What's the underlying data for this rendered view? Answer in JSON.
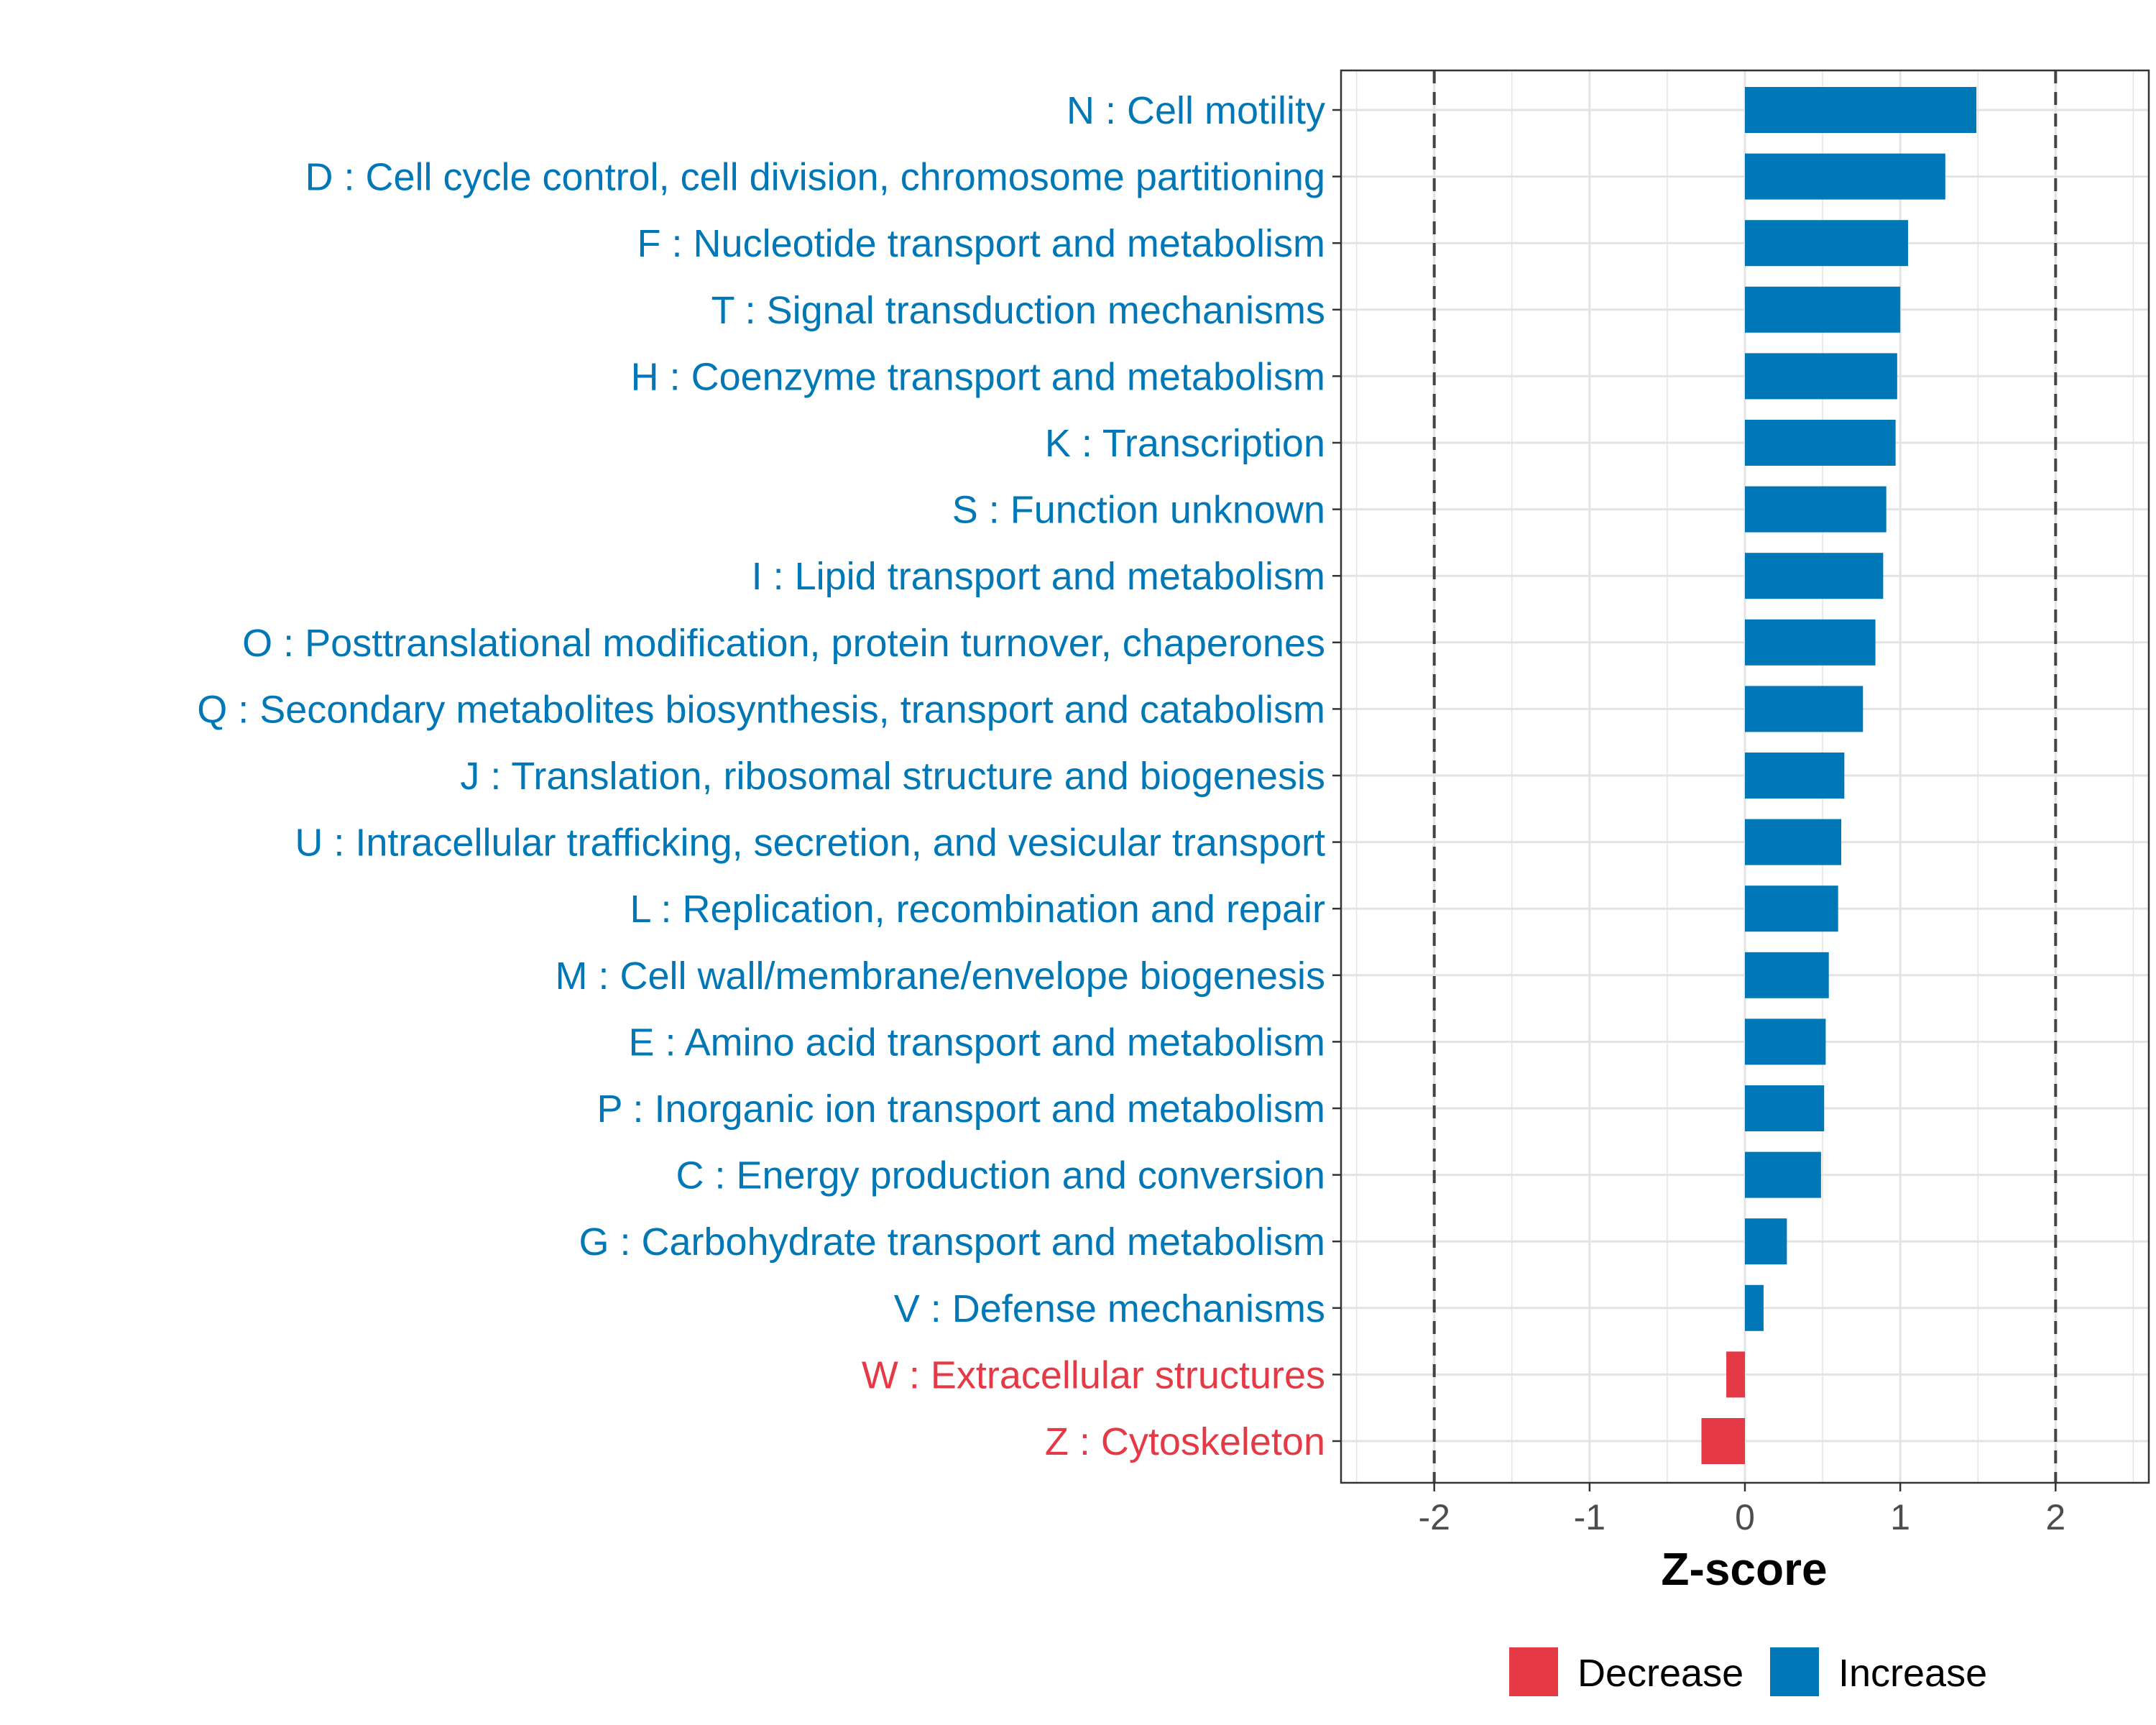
{
  "chart_data": {
    "type": "bar",
    "orientation": "horizontal",
    "xlabel": "Z-score",
    "ylabel": "",
    "xlim": [
      -2.6,
      2.6
    ],
    "xticks": [
      -2,
      -1,
      0,
      1,
      2
    ],
    "xtick_labels": [
      "-2",
      "-1",
      "0",
      "1",
      "2"
    ],
    "reference_lines": [
      -2,
      2
    ],
    "grid": true,
    "legend_position": "bottom",
    "colors": {
      "Decrease": "#e63946",
      "Increase": "#0077b6"
    },
    "legend": [
      {
        "label": "Decrease",
        "color": "#e63946"
      },
      {
        "label": "Increase",
        "color": "#0077b6"
      }
    ],
    "categories": [
      "N : Cell motility",
      "D : Cell cycle control, cell division, chromosome partitioning",
      "F : Nucleotide transport and metabolism",
      "T : Signal transduction mechanisms",
      "H : Coenzyme transport and metabolism",
      "K : Transcription",
      "S : Function unknown",
      "I : Lipid transport and metabolism",
      "O : Posttranslational modification, protein turnover, chaperones",
      "Q : Secondary metabolites biosynthesis, transport and catabolism",
      "J : Translation, ribosomal structure and biogenesis",
      "U : Intracellular trafficking, secretion, and vesicular transport",
      "L : Replication, recombination and repair",
      "M : Cell wall/membrane/envelope biogenesis",
      "E : Amino acid transport and metabolism",
      "P : Inorganic ion transport and metabolism",
      "C : Energy production and conversion",
      "G : Carbohydrate transport and metabolism",
      "V : Defense mechanisms",
      "W : Extracellular structures",
      "Z : Cytoskeleton"
    ],
    "values": [
      1.49,
      1.29,
      1.05,
      1.0,
      0.98,
      0.97,
      0.91,
      0.89,
      0.84,
      0.76,
      0.64,
      0.62,
      0.6,
      0.54,
      0.52,
      0.51,
      0.49,
      0.27,
      0.12,
      -0.12,
      -0.28
    ],
    "direction": [
      "Increase",
      "Increase",
      "Increase",
      "Increase",
      "Increase",
      "Increase",
      "Increase",
      "Increase",
      "Increase",
      "Increase",
      "Increase",
      "Increase",
      "Increase",
      "Increase",
      "Increase",
      "Increase",
      "Increase",
      "Increase",
      "Increase",
      "Decrease",
      "Decrease"
    ]
  }
}
